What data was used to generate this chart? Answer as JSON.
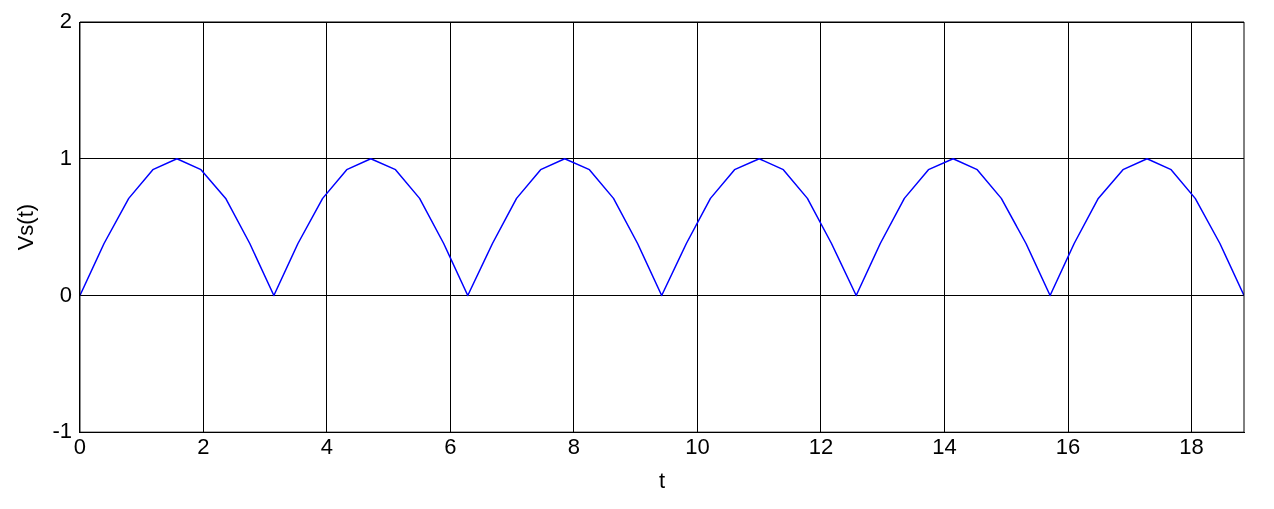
{
  "chart_data": {
    "type": "line",
    "xlabel": "t",
    "ylabel": "Vs(t)",
    "x": [
      0,
      0.39,
      0.79,
      1.18,
      1.57,
      1.96,
      2.36,
      2.75,
      3.14,
      3.53,
      3.93,
      4.32,
      4.71,
      5.11,
      5.5,
      5.89,
      6.28,
      6.68,
      7.07,
      7.46,
      7.85,
      8.25,
      8.64,
      9.03,
      9.42,
      9.82,
      10.21,
      10.6,
      11,
      11.39,
      11.78,
      12.17,
      12.57,
      12.96,
      13.35,
      13.74,
      14.14,
      14.53,
      14.92,
      15.32,
      15.71,
      16.1,
      16.49,
      16.89,
      17.28,
      17.67,
      18.06,
      18.46,
      18.85
    ],
    "series": [
      {
        "color": "#0000ff",
        "values": [
          0,
          0.38,
          0.71,
          0.92,
          1,
          0.92,
          0.71,
          0.38,
          0,
          0.38,
          0.71,
          0.92,
          1,
          0.92,
          0.71,
          0.38,
          0,
          0.38,
          0.71,
          0.92,
          1,
          0.92,
          0.71,
          0.38,
          0,
          0.38,
          0.71,
          0.92,
          1,
          0.92,
          0.71,
          0.38,
          0,
          0.38,
          0.71,
          0.92,
          1,
          0.92,
          0.71,
          0.38,
          0,
          0.38,
          0.71,
          0.92,
          1,
          0.92,
          0.71,
          0.38,
          0
        ]
      }
    ],
    "xlim": [
      0,
      18.85
    ],
    "xticks": [
      0,
      2,
      4,
      6,
      8,
      10,
      12,
      14,
      16,
      18
    ],
    "ylim": [
      -1,
      2
    ],
    "yticks": [
      -1,
      0,
      1,
      2
    ],
    "grid": true,
    "legend": false,
    "marker": "none",
    "line_style": "solid"
  }
}
